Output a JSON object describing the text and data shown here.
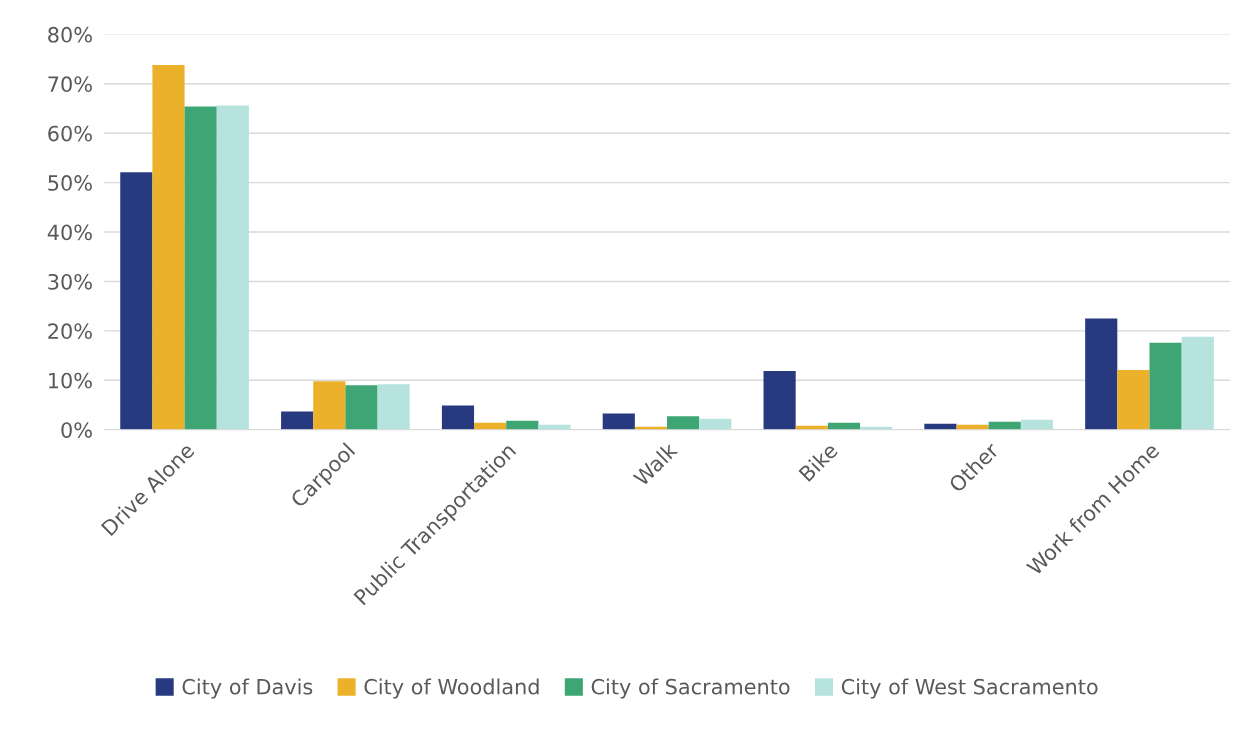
{
  "chart_data": {
    "type": "bar",
    "categories": [
      "Drive Alone",
      "Carpool",
      "Public Transportation",
      "Walk",
      "Bike",
      "Other",
      "Work from Home"
    ],
    "series": [
      {
        "name": "City of Davis",
        "color": "#283a7f",
        "values": [
          52.1,
          3.7,
          4.9,
          3.3,
          11.9,
          1.2,
          22.5
        ]
      },
      {
        "name": "City of Woodland",
        "color": "#ecb12a",
        "values": [
          73.8,
          9.8,
          1.4,
          0.6,
          0.8,
          1.0,
          12.1
        ]
      },
      {
        "name": "City of Sacramento",
        "color": "#3ea574",
        "values": [
          65.4,
          9.0,
          1.8,
          2.7,
          1.4,
          1.6,
          17.6
        ]
      },
      {
        "name": "City of West Sacramento",
        "color": "#b6e3de",
        "values": [
          65.6,
          9.2,
          1.0,
          2.2,
          0.6,
          2.0,
          18.8
        ]
      }
    ],
    "ylim": [
      0,
      80
    ],
    "yticks": [
      {
        "value": 0,
        "label": "0%"
      },
      {
        "value": 10,
        "label": "10%"
      },
      {
        "value": 20,
        "label": "20%"
      },
      {
        "value": 30,
        "label": "30%"
      },
      {
        "value": 40,
        "label": "40%"
      },
      {
        "value": 50,
        "label": "50%"
      },
      {
        "value": 60,
        "label": "60%"
      },
      {
        "value": 70,
        "label": "70%"
      },
      {
        "value": 80,
        "label": "80%"
      }
    ],
    "grid": "y",
    "legend": "bottom"
  }
}
